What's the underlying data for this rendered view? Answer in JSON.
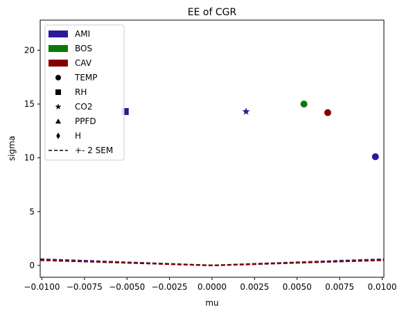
{
  "chart_data": {
    "type": "scatter",
    "title": "EE of CGR",
    "xlabel": "mu",
    "ylabel": "sigma",
    "xlim": [
      -0.0101,
      0.0101
    ],
    "ylim": [
      -1.1,
      22.8
    ],
    "xticks": [
      -0.01,
      -0.0075,
      -0.005,
      -0.0025,
      0.0,
      0.0025,
      0.005,
      0.0075,
      0.01
    ],
    "xtick_labels": [
      "−0.0100",
      "−0.0075",
      "−0.0050",
      "−0.0025",
      "0.0000",
      "0.0025",
      "0.0050",
      "0.0075",
      "0.0100"
    ],
    "yticks": [
      0,
      5,
      10,
      15,
      20
    ],
    "ytick_labels": [
      "0",
      "5",
      "10",
      "15",
      "20"
    ],
    "grid": false,
    "legend_position": "top-left",
    "legend": [
      {
        "label": "AMI",
        "kind": "patch",
        "color": "#2a1a96"
      },
      {
        "label": "BOS",
        "kind": "patch",
        "color": "#0a7a0a"
      },
      {
        "label": "CAV",
        "kind": "patch",
        "color": "#840000"
      },
      {
        "label": "TEMP",
        "kind": "marker",
        "marker": "circle"
      },
      {
        "label": "RH",
        "kind": "marker",
        "marker": "square"
      },
      {
        "label": "CO2",
        "kind": "marker",
        "marker": "star"
      },
      {
        "label": "PPFD",
        "kind": "marker",
        "marker": "triangle"
      },
      {
        "label": "H",
        "kind": "marker",
        "marker": "diamond"
      },
      {
        "label": "+- 2 SEM",
        "kind": "dashed"
      }
    ],
    "points": [
      {
        "site": "AMI",
        "variable": "RH",
        "x": -0.0051,
        "y": 14.3,
        "color": "#2a1a96",
        "marker": "square"
      },
      {
        "site": "AMI",
        "variable": "CO2",
        "x": 0.002,
        "y": 14.3,
        "color": "#2a1a96",
        "marker": "star"
      },
      {
        "site": "BOS",
        "variable": "TEMP",
        "x": 0.0054,
        "y": 15.0,
        "color": "#0a7a0a",
        "marker": "circle"
      },
      {
        "site": "CAV",
        "variable": "TEMP",
        "x": 0.0068,
        "y": 14.2,
        "color": "#840000",
        "marker": "circle"
      },
      {
        "site": "AMI",
        "variable": "TEMP",
        "x": 0.0096,
        "y": 10.1,
        "color": "#2a1a96",
        "marker": "circle"
      }
    ],
    "sem_curves": [
      {
        "site": "AMI",
        "color": "#2a1a96",
        "x": [
          -0.0101,
          -0.0075,
          -0.005,
          -0.0025,
          0.0,
          0.0025,
          0.005,
          0.0075,
          0.0101
        ],
        "y": [
          0.58,
          0.44,
          0.29,
          0.15,
          0.0,
          0.15,
          0.29,
          0.44,
          0.58
        ]
      },
      {
        "site": "BOS",
        "color": "#0a7a0a",
        "x": [
          -0.0101,
          -0.0075,
          -0.005,
          -0.0025,
          0.0,
          0.0025,
          0.005,
          0.0075,
          0.0101
        ],
        "y": [
          0.5,
          0.37,
          0.25,
          0.12,
          0.0,
          0.12,
          0.25,
          0.37,
          0.5
        ]
      },
      {
        "site": "CAV",
        "color": "#840000",
        "x": [
          -0.0101,
          -0.0075,
          -0.005,
          -0.0025,
          0.0,
          0.0025,
          0.005,
          0.0075,
          0.0101
        ],
        "y": [
          0.48,
          0.36,
          0.24,
          0.12,
          0.0,
          0.12,
          0.24,
          0.36,
          0.48
        ]
      }
    ]
  }
}
